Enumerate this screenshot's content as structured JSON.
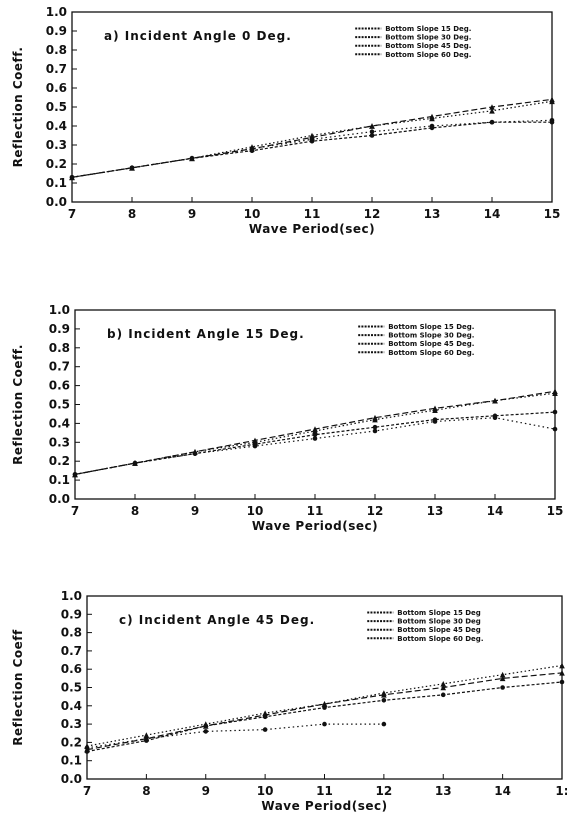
{
  "chart_data": [
    {
      "type": "line",
      "title": "a) Incident Angle 0 Deg.",
      "xlabel": "Wave Period(sec)",
      "ylabel": "Reflection Coeff.",
      "xlim": [
        7,
        15
      ],
      "ylim": [
        0,
        1.0
      ],
      "x_ticks": [
        "7",
        "8",
        "9",
        "10",
        "11",
        "12",
        "13",
        "14",
        "15"
      ],
      "y_ticks": [
        "0.0",
        "0.1",
        "0.2",
        "0.3",
        "0.4",
        "0.5",
        "0.6",
        "0.7",
        "0.8",
        "0.9",
        "1.0"
      ],
      "legend": "top-right",
      "grid": false,
      "x": [
        7,
        8,
        9,
        10,
        11,
        12,
        13,
        14,
        15
      ],
      "series": [
        {
          "name": "Bottom Slope 15 Deg.",
          "marker": "0",
          "values": [
            0.13,
            0.18,
            0.23,
            0.28,
            0.33,
            0.37,
            0.4,
            0.42,
            0.43
          ]
        },
        {
          "name": "Bottom Slope 30 Deg.",
          "marker": "0",
          "values": [
            0.13,
            0.18,
            0.23,
            0.27,
            0.32,
            0.35,
            0.39,
            0.42,
            0.42
          ]
        },
        {
          "name": "Bottom Slope 45 Deg.",
          "marker": "Δ",
          "values": [
            0.13,
            0.18,
            0.23,
            0.28,
            0.34,
            0.4,
            0.45,
            0.5,
            0.54
          ]
        },
        {
          "name": "Bottom Slope 60 Deg.",
          "marker": "Δ",
          "values": [
            0.13,
            0.18,
            0.23,
            0.29,
            0.35,
            0.4,
            0.44,
            0.48,
            0.53
          ]
        }
      ]
    },
    {
      "type": "line",
      "title": "b) Incident Angle 15 Deg.",
      "xlabel": "Wave Period(sec)",
      "ylabel": "Reflection Coeff.",
      "xlim": [
        7,
        15
      ],
      "ylim": [
        0,
        1.0
      ],
      "x_ticks": [
        "7",
        "8",
        "9",
        "10",
        "11",
        "12",
        "13",
        "14",
        "15"
      ],
      "y_ticks": [
        "0.0",
        "0.1",
        "0.2",
        "0.3",
        "0.4",
        "0.5",
        "0.6",
        "0.7",
        "0.8",
        "0.9",
        "1.0"
      ],
      "legend": "top-right",
      "grid": false,
      "x": [
        7,
        8,
        9,
        10,
        11,
        12,
        13,
        14,
        15
      ],
      "series": [
        {
          "name": "Bottom Slope 15 Deg.",
          "marker": "0",
          "values": [
            0.13,
            0.19,
            0.24,
            0.28,
            0.32,
            0.36,
            0.41,
            0.43,
            0.37
          ]
        },
        {
          "name": "Bottom Slope 30 Deg.",
          "marker": "0",
          "values": [
            0.13,
            0.19,
            0.24,
            0.29,
            0.34,
            0.38,
            0.42,
            0.44,
            0.46
          ]
        },
        {
          "name": "Bottom Slope 45 Deg.",
          "marker": "Δ",
          "values": [
            0.13,
            0.19,
            0.25,
            0.31,
            0.37,
            0.43,
            0.48,
            0.52,
            0.57
          ]
        },
        {
          "name": "Bottom Slope 60 Deg.",
          "marker": "Δ",
          "values": [
            0.13,
            0.19,
            0.25,
            0.3,
            0.36,
            0.42,
            0.47,
            0.52,
            0.56
          ]
        }
      ]
    },
    {
      "type": "line",
      "title": "c) Incident Angle 45 Deg.",
      "xlabel": "Wave Period(sec)",
      "ylabel": "Reflection Coeff",
      "xlim": [
        7,
        15
      ],
      "ylim": [
        0,
        1.0
      ],
      "x_ticks": [
        "7",
        "8",
        "9",
        "10",
        "11",
        "12",
        "13",
        "14",
        "1:"
      ],
      "y_ticks": [
        "0.0",
        "0.1",
        "0.2",
        "0.3",
        "0.4",
        "0.5",
        "0.6",
        "0.7",
        "0.8",
        "0.9",
        "1.0"
      ],
      "legend": "top-right",
      "grid": false,
      "x": [
        7,
        8,
        9,
        10,
        11,
        12,
        13,
        14,
        15
      ],
      "series": [
        {
          "name": "Bottom Slope 15 Deg",
          "marker": "0",
          "x": [
            7,
            8,
            9,
            10,
            11,
            12
          ],
          "values": [
            0.17,
            0.22,
            0.26,
            0.27,
            0.3,
            0.3
          ]
        },
        {
          "name": "Bottom Slope 30 Deg",
          "marker": "0",
          "values": [
            0.15,
            0.21,
            0.29,
            0.34,
            0.39,
            0.43,
            0.46,
            0.5,
            0.53
          ]
        },
        {
          "name": "Bottom Slope 45 Deg",
          "marker": "Δ",
          "values": [
            0.16,
            0.22,
            0.29,
            0.35,
            0.41,
            0.46,
            0.5,
            0.55,
            0.58
          ]
        },
        {
          "name": "Bottom Slope 60 Deg.",
          "marker": "Δ",
          "values": [
            0.18,
            0.24,
            0.3,
            0.36,
            0.41,
            0.47,
            0.52,
            0.57,
            0.62
          ]
        }
      ]
    }
  ]
}
